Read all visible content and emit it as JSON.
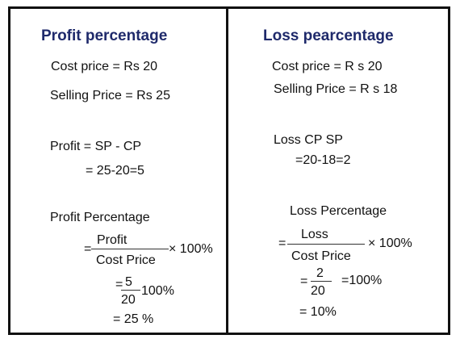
{
  "left": {
    "title": "Profit percentage",
    "cost_price": "Cost price = Rs 20",
    "selling_price": "Selling Price = Rs 25",
    "profit_formula": "Profit = SP - CP",
    "profit_calc": "= 25-20=5",
    "pct_heading": "Profit Percentage",
    "frac_eq": "=",
    "frac_num": "Profit",
    "frac_den": "Cost Price",
    "frac_mult": "× 100%",
    "step_eq": "=",
    "step_num": "5",
    "step_den": "20",
    "step_mult": "100%",
    "result": "= 25 %"
  },
  "right": {
    "title": "Loss pearcentage",
    "cost_price": "Cost price = R s 20",
    "selling_price": "Selling Price = R s 18",
    "loss_formula": "Loss CP SP",
    "loss_calc": "=20-18=2",
    "pct_heading": "Loss Percentage",
    "frac_eq": "=",
    "frac_num": "Loss",
    "frac_den": "Cost Price",
    "frac_mult": "× 100%",
    "step_eq": "=",
    "step_num": "2",
    "step_den": "20",
    "step_mult": "=100%",
    "result": "= 10%"
  }
}
